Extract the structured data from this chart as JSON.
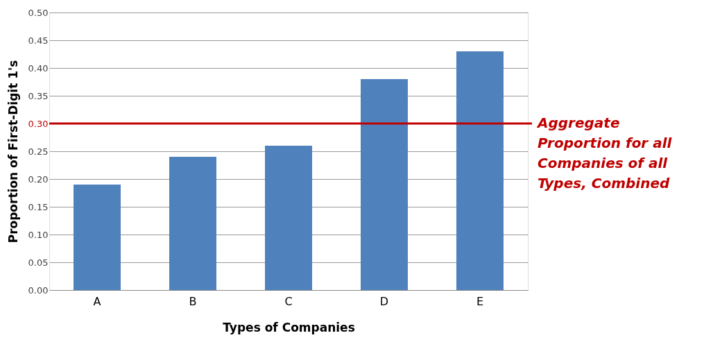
{
  "chart_data": {
    "type": "bar",
    "xlabel": "Types of Companies",
    "ylabel": "Proportion of First-Digit  1's",
    "categories": [
      "A",
      "B",
      "C",
      "D",
      "E"
    ],
    "series": [
      {
        "color": "#4f81bd",
        "values": [
          0.19,
          0.24,
          0.26,
          0.38,
          0.43
        ]
      }
    ],
    "ylim": [
      0,
      0.5
    ],
    "yticks": [
      {
        "value": 0,
        "label": "0.00"
      },
      {
        "value": 0.05,
        "label": "0.05"
      },
      {
        "value": 0.1,
        "label": "0.10"
      },
      {
        "value": 0.15,
        "label": "0.15"
      },
      {
        "value": 0.2,
        "label": "0.20"
      },
      {
        "value": 0.25,
        "label": "0.25"
      },
      {
        "value": 0.3,
        "label": "0.30"
      },
      {
        "value": 0.35,
        "label": "0.35"
      },
      {
        "value": 0.4,
        "label": "0.40"
      },
      {
        "value": 0.45,
        "label": "0.45"
      },
      {
        "value": 0.5,
        "label": "0.50"
      }
    ],
    "grid": "y",
    "ref_lines": [
      {
        "axis": "y",
        "value": 0.3,
        "label": "Aggregate Proportion for all Companies of all Types, Combined",
        "color": "#c00000",
        "line_style": "solid"
      }
    ]
  }
}
